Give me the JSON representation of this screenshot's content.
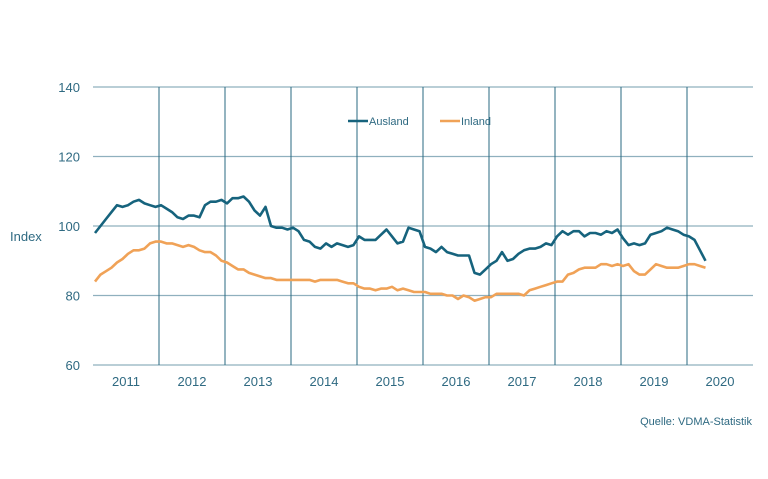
{
  "chart_data": {
    "type": "line",
    "title": "",
    "xlabel": "",
    "ylabel": "Index",
    "ylim": [
      60,
      140
    ],
    "yticks": [
      60,
      80,
      100,
      120,
      140
    ],
    "xticks": [
      "2011",
      "2012",
      "2013",
      "2014",
      "2015",
      "2016",
      "2017",
      "2018",
      "2019",
      "2020"
    ],
    "x_start": "2011-01",
    "x_step": "month",
    "grid": true,
    "legend_position": "top-center",
    "source": "Quelle: VDMA-Statistik",
    "series": [
      {
        "name": "Ausland",
        "color": "#16637d",
        "values": [
          98,
          100,
          102,
          104,
          106,
          105.5,
          106,
          107,
          107.5,
          106.5,
          106,
          105.5,
          106,
          105,
          104,
          102.5,
          102,
          103,
          103,
          102.5,
          106,
          107,
          107,
          107.5,
          106.5,
          108,
          108,
          108.5,
          107,
          104.5,
          103,
          105.5,
          100,
          99.5,
          99.5,
          99,
          99.5,
          98.5,
          96,
          95.5,
          94,
          93.5,
          95,
          94,
          95,
          94.5,
          94,
          94.5,
          97,
          96,
          96,
          96,
          97.5,
          99,
          97,
          95,
          95.5,
          99.5,
          99,
          98.5,
          94,
          93.5,
          92.5,
          94,
          92.5,
          92,
          91.5,
          91.5,
          91.5,
          86.5,
          86,
          87.5,
          89,
          90,
          92.5,
          90,
          90.5,
          92,
          93,
          93.5,
          93.5,
          94,
          95,
          94.5,
          97,
          98.5,
          97.5,
          98.5,
          98.5,
          97,
          98,
          98,
          97.5,
          98.5,
          98,
          99,
          96.5,
          94.5,
          95,
          94.5,
          95,
          97.5,
          98,
          98.5,
          99.5,
          99,
          98.5,
          97.5,
          97,
          96,
          93,
          90
        ]
      },
      {
        "name": "Inland",
        "color": "#f0a257",
        "values": [
          84,
          86,
          87,
          88,
          89.5,
          90.5,
          92,
          93,
          93,
          93.5,
          95,
          95.5,
          95.5,
          95,
          95,
          94.5,
          94,
          94.5,
          94,
          93,
          92.5,
          92.5,
          91.5,
          90,
          89.5,
          88.5,
          87.5,
          87.5,
          86.5,
          86,
          85.5,
          85,
          85,
          84.5,
          84.5,
          84.5,
          84.5,
          84.5,
          84.5,
          84.5,
          84,
          84.5,
          84.5,
          84.5,
          84.5,
          84,
          83.5,
          83.5,
          82.5,
          82,
          82,
          81.5,
          82,
          82,
          82.5,
          81.5,
          82,
          81.5,
          81,
          81,
          81,
          80.5,
          80.5,
          80.5,
          80,
          80,
          79,
          80,
          79.5,
          78.5,
          79,
          79.5,
          79.5,
          80.5,
          80.5,
          80.5,
          80.5,
          80.5,
          80,
          81.5,
          82,
          82.5,
          83,
          83.5,
          84,
          84,
          86,
          86.5,
          87.5,
          88,
          88,
          88,
          89,
          89,
          88.5,
          89,
          88.5,
          89,
          87,
          86,
          86,
          87.5,
          89,
          88.5,
          88,
          88,
          88,
          88.5,
          89,
          89,
          88.5,
          88
        ]
      }
    ]
  },
  "colors": {
    "axis_text": "#2f6a82",
    "hgrid": "#8fb0be",
    "vgrid": "#2a6a82"
  }
}
